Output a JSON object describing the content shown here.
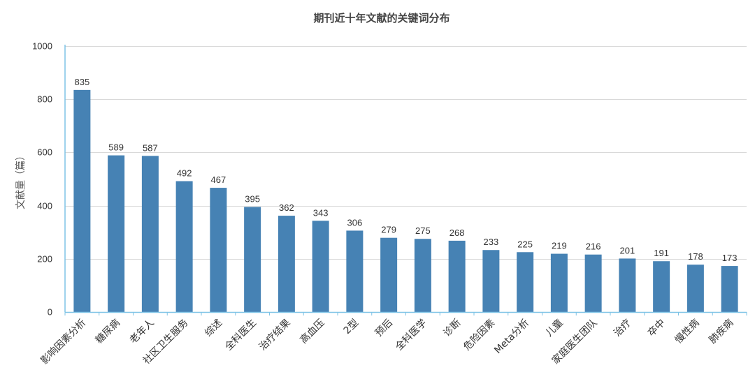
{
  "chart_data": {
    "type": "bar",
    "title": "期刊近十年文献的关键词分布",
    "xlabel": "",
    "ylabel": "文献量（篇）",
    "ylim": [
      0,
      1000
    ],
    "yticks": [
      0,
      200,
      400,
      600,
      800,
      1000
    ],
    "grid": true,
    "legend": "none",
    "bar_color": "#4682B4",
    "categories": [
      "影响因素分析",
      "糖尿病",
      "老年人",
      "社区卫生服务",
      "综述",
      "全科医生",
      "治疗结果",
      "高血压",
      "2型",
      "预后",
      "全科医学",
      "诊断",
      "危险因素",
      "Meta分析",
      "儿童",
      "家庭医生团队",
      "治疗",
      "卒中",
      "慢性病",
      "肺疾病"
    ],
    "values": [
      835,
      589,
      587,
      492,
      467,
      395,
      362,
      343,
      306,
      279,
      275,
      268,
      233,
      225,
      219,
      216,
      201,
      191,
      178,
      173
    ]
  }
}
